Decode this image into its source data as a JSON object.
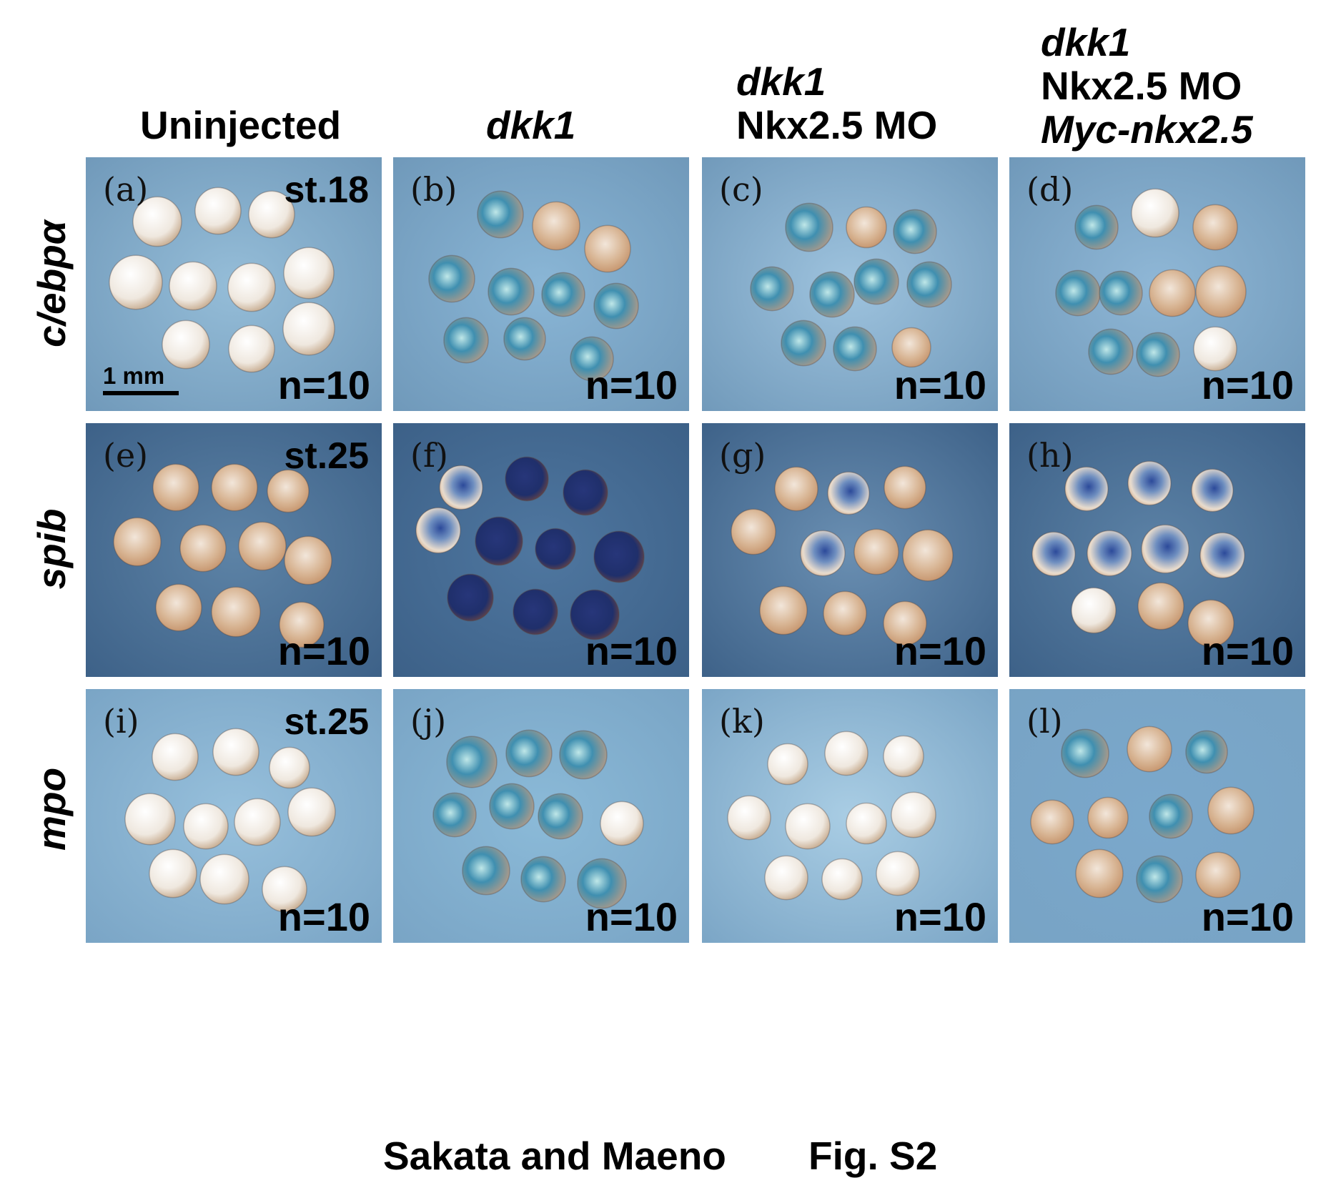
{
  "column_headers": [
    {
      "lines": [
        {
          "text": "Uninjected",
          "italic": false
        }
      ]
    },
    {
      "lines": [
        {
          "text": "dkk1",
          "italic": true
        }
      ]
    },
    {
      "lines": [
        {
          "text": "dkk1",
          "italic": true
        },
        {
          "text": "Nkx2.5 MO",
          "italic": false
        }
      ]
    },
    {
      "lines": [
        {
          "text": "dkk1",
          "italic": true
        },
        {
          "text": "Nkx2.5 MO",
          "italic": false
        },
        {
          "text": "Myc-nkx2.5",
          "italic": true
        }
      ]
    }
  ],
  "row_labels": [
    "c/ebpα",
    "spib",
    "mpo"
  ],
  "panels": [
    {
      "label": "(a)",
      "stage": "st.18",
      "count": "n=10",
      "scale_bar": "1 mm"
    },
    {
      "label": "(b)",
      "count": "n=10"
    },
    {
      "label": "(c)",
      "count": "n=10"
    },
    {
      "label": "(d)",
      "count": "n=10"
    },
    {
      "label": "(e)",
      "stage": "st.25",
      "count": "n=10"
    },
    {
      "label": "(f)",
      "count": "n=10"
    },
    {
      "label": "(g)",
      "count": "n=10"
    },
    {
      "label": "(h)",
      "count": "n=10"
    },
    {
      "label": "(i)",
      "stage": "st.25",
      "count": "n=10"
    },
    {
      "label": "(j)",
      "count": "n=10"
    },
    {
      "label": "(k)",
      "count": "n=10"
    },
    {
      "label": "(l)",
      "count": "n=10"
    }
  ],
  "footer": {
    "authors": "Sakata and Maeno",
    "figure": "Fig. S2"
  },
  "colors": {
    "background_light": "#8fb8d6",
    "background_dark": "#5f86a8",
    "embryo_white": "#efe8df",
    "embryo_brown": "#c4926a",
    "stain_blue": "#3f8fb0",
    "stain_dark": "#1f2f6b"
  }
}
